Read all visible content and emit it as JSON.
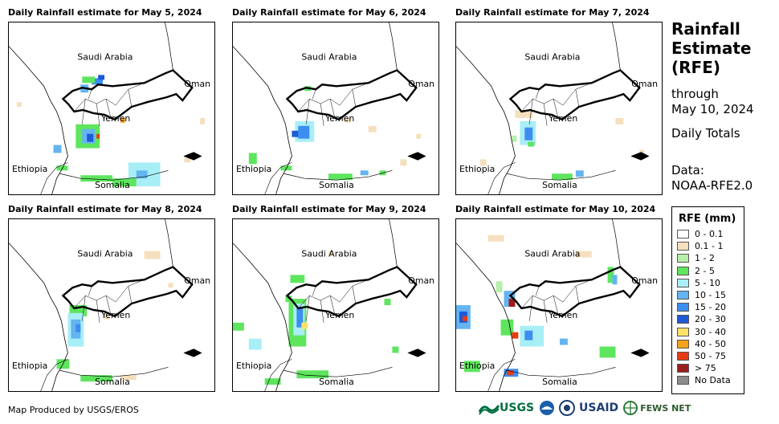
{
  "panels": [
    {
      "title": "Daily Rainfall estimate for May 5, 2024"
    },
    {
      "title": "Daily Rainfall estimate for May 6, 2024"
    },
    {
      "title": "Daily Rainfall estimate for May 7, 2024"
    },
    {
      "title": "Daily Rainfall estimate for May 8, 2024"
    },
    {
      "title": "Daily Rainfall estimate for May 9, 2024"
    },
    {
      "title": "Daily Rainfall estimate for May 10, 2024"
    }
  ],
  "countries": {
    "saudi": "Saudi Arabia",
    "oman": "Oman",
    "yemen": "Yemen",
    "ethiopia": "Ethiopia",
    "somalia": "Somalia"
  },
  "side": {
    "title_line1": "Rainfall",
    "title_line2": "Estimate",
    "title_line3": "(RFE)",
    "through": "through",
    "date": "May 10, 2024",
    "totals": "Daily Totals",
    "data_label": "Data:",
    "data_source": "NOAA-RFE2.0"
  },
  "legend": {
    "title": "RFE (mm)",
    "items": [
      {
        "label": "0 - 0.1",
        "color": "#ffffff"
      },
      {
        "label": "0.1 - 1",
        "color": "#f5dfbd"
      },
      {
        "label": "1 - 2",
        "color": "#b6f0a8"
      },
      {
        "label": "2 - 5",
        "color": "#5ee55e"
      },
      {
        "label": "5 - 10",
        "color": "#a8eef6"
      },
      {
        "label": "10 - 15",
        "color": "#64b4f2"
      },
      {
        "label": "15 - 20",
        "color": "#3c8ef0"
      },
      {
        "label": "20 - 30",
        "color": "#1c5ad6"
      },
      {
        "label": "30 - 40",
        "color": "#fde26a"
      },
      {
        "label": "40 - 50",
        "color": "#f5a21a"
      },
      {
        "label": "50 - 75",
        "color": "#e83b10"
      },
      {
        "label": "> 75",
        "color": "#9b1c1c"
      },
      {
        "label": "No Data",
        "color": "#8c8c8c"
      }
    ]
  },
  "footer": {
    "credit": "Map Produced by USGS/EROS"
  },
  "logos": {
    "usgs": "USGS",
    "usaid": "USAID",
    "fewsnet": "FEWS NET"
  }
}
